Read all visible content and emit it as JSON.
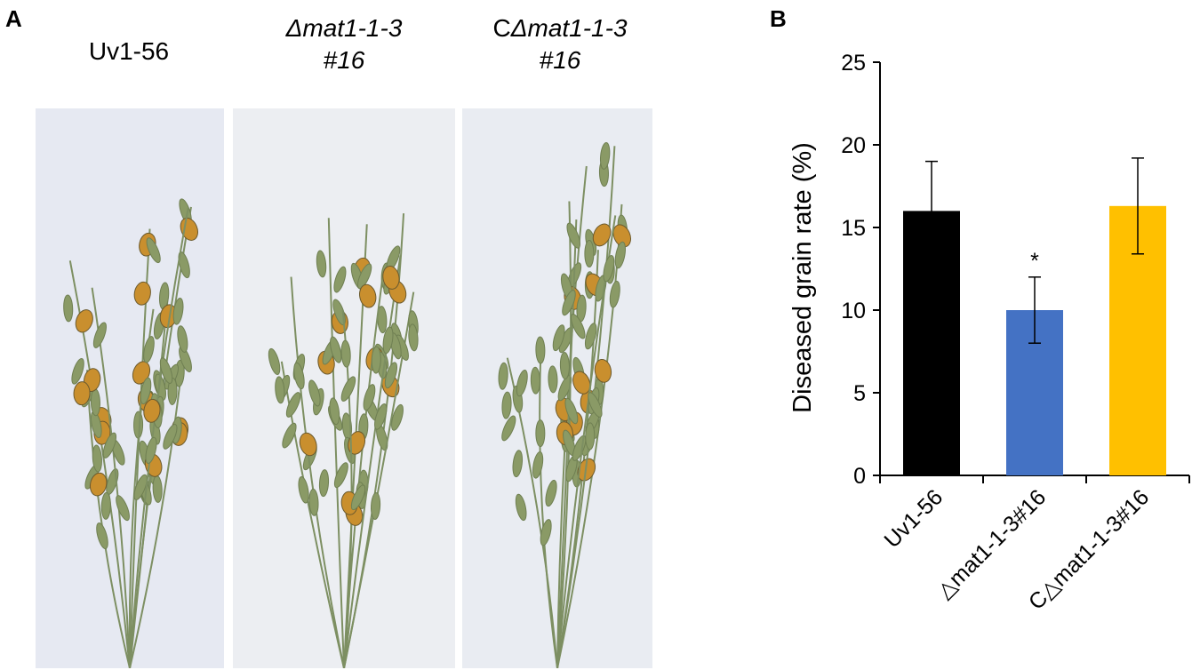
{
  "panel_a": {
    "label": "A",
    "photos": [
      {
        "title_line1": "Uv1-56",
        "title_line2": ""
      },
      {
        "title_line1": "Δmat1-1-3",
        "title_line2": "#16"
      },
      {
        "title_line1": "CΔmat1-1-3",
        "title_line2": "#16"
      }
    ]
  },
  "panel_b": {
    "label": "B"
  },
  "chart_data": {
    "type": "bar",
    "categories": [
      "Uv1-56",
      "△mat1-1-3#16",
      "C△mat1-1-3#16"
    ],
    "series": [
      {
        "values": [
          16.0,
          10.0,
          16.3
        ],
        "errors": [
          3.0,
          2.0,
          2.9
        ],
        "colors": [
          "#000000",
          "#4472c4",
          "#ffc000"
        ],
        "annotations": [
          "",
          "*",
          ""
        ]
      }
    ],
    "ylabel": "Diseased grain rate (%)",
    "xlabel": "",
    "ylim": [
      0,
      25
    ],
    "yticks": [
      0,
      5,
      10,
      15,
      20,
      25
    ],
    "grid": false
  }
}
